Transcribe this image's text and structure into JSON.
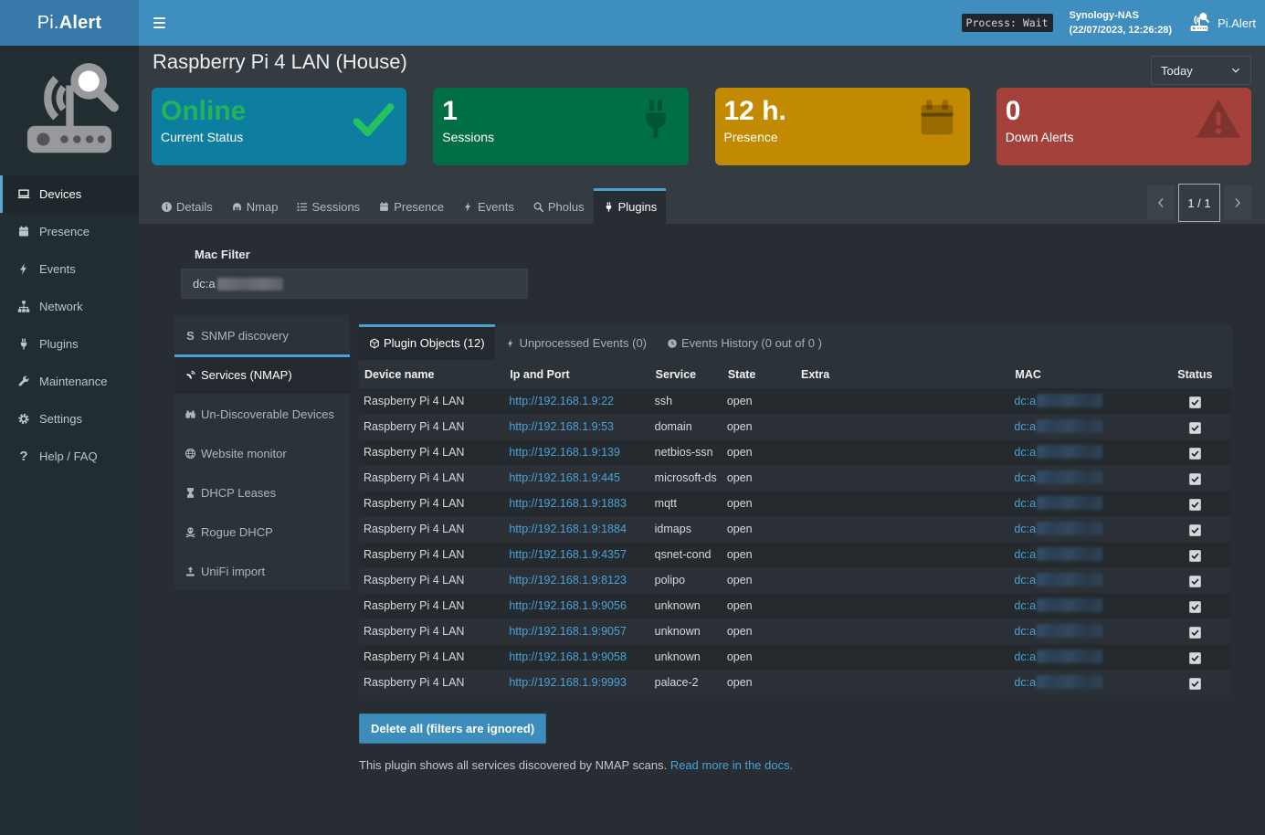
{
  "navbar": {
    "brand_prefix": "Pi.",
    "brand_suffix": "Alert",
    "process_badge": "Process: Wait",
    "host_name": "Synology-NAS",
    "host_time": "(22/07/2023, 12:26:28)",
    "app_name": "Pi.Alert"
  },
  "sidebar": {
    "items": [
      {
        "label": "Devices",
        "icon": "laptop",
        "active": true
      },
      {
        "label": "Presence",
        "icon": "calendar",
        "active": false
      },
      {
        "label": "Events",
        "icon": "bolt",
        "active": false
      },
      {
        "label": "Network",
        "icon": "sitemap",
        "active": false
      },
      {
        "label": "Plugins",
        "icon": "plug",
        "active": false
      },
      {
        "label": "Maintenance",
        "icon": "wrench",
        "active": false
      },
      {
        "label": "Settings",
        "icon": "gear",
        "active": false
      },
      {
        "label": "Help / FAQ",
        "icon": "question",
        "active": false
      }
    ]
  },
  "header": {
    "title": "Raspberry Pi 4 LAN (House)",
    "period_selector": "Today"
  },
  "cards": [
    {
      "value": "Online",
      "label": "Current Status",
      "icon": "check",
      "bg": "#0d7ea0",
      "value_color": "#23b35a"
    },
    {
      "value": "1",
      "label": "Sessions",
      "icon": "plug",
      "bg": "#016e43",
      "value_color": ""
    },
    {
      "value": "12 h.",
      "label": "Presence",
      "icon": "calendar",
      "bg": "#c28a00",
      "value_color": ""
    },
    {
      "value": "0",
      "label": "Down Alerts",
      "icon": "warning",
      "bg": "#a4413b",
      "value_color": ""
    }
  ],
  "device_tabs": [
    {
      "label": "Details",
      "icon": "info",
      "active": false
    },
    {
      "label": "Nmap",
      "icon": "nmap",
      "active": false
    },
    {
      "label": "Sessions",
      "icon": "listol",
      "active": false
    },
    {
      "label": "Presence",
      "icon": "calendar",
      "active": false
    },
    {
      "label": "Events",
      "icon": "bolt",
      "active": false
    },
    {
      "label": "Pholus",
      "icon": "search",
      "active": false
    },
    {
      "label": "Plugins",
      "icon": "plug",
      "active": true
    }
  ],
  "pagination": {
    "label": "1 / 1"
  },
  "plugin_panel": {
    "mac_filter_label": "Mac Filter",
    "mac_filter_value": "dc:a",
    "nav": [
      {
        "label": "SNMP discovery",
        "icon": "snmp",
        "active": false
      },
      {
        "label": "Services (NMAP)",
        "icon": "satellite",
        "active": true
      },
      {
        "label": "Un-Discoverable Devices",
        "icon": "binoculars",
        "active": false
      },
      {
        "label": "Website monitor",
        "icon": "globe",
        "active": false
      },
      {
        "label": "DHCP Leases",
        "icon": "hourglass",
        "active": false
      },
      {
        "label": "Rogue DHCP",
        "icon": "skull",
        "active": false
      },
      {
        "label": "UniFi import",
        "icon": "upload",
        "active": false
      }
    ],
    "inner_tabs": [
      {
        "label": "Plugin Objects (12)",
        "icon": "cube",
        "active": true
      },
      {
        "label": "Unprocessed Events (0)",
        "icon": "bolt",
        "active": false
      },
      {
        "label": "Events History (0 out of 0 )",
        "icon": "clock",
        "active": false
      }
    ],
    "table": {
      "columns": [
        "Device name",
        "Ip and Port",
        "Service",
        "State",
        "Extra",
        "MAC",
        "Status"
      ],
      "mac_prefix": "dc:a",
      "rows": [
        {
          "device": "Raspberry Pi 4 LAN",
          "url": "http://192.168.1.9:22",
          "service": "ssh",
          "state": "open",
          "extra": "",
          "status_checked": true
        },
        {
          "device": "Raspberry Pi 4 LAN",
          "url": "http://192.168.1.9:53",
          "service": "domain",
          "state": "open",
          "extra": "",
          "status_checked": true
        },
        {
          "device": "Raspberry Pi 4 LAN",
          "url": "http://192.168.1.9:139",
          "service": "netbios-ssn",
          "state": "open",
          "extra": "",
          "status_checked": true
        },
        {
          "device": "Raspberry Pi 4 LAN",
          "url": "http://192.168.1.9:445",
          "service": "microsoft-ds",
          "state": "open",
          "extra": "",
          "status_checked": true
        },
        {
          "device": "Raspberry Pi 4 LAN",
          "url": "http://192.168.1.9:1883",
          "service": "mqtt",
          "state": "open",
          "extra": "",
          "status_checked": true
        },
        {
          "device": "Raspberry Pi 4 LAN",
          "url": "http://192.168.1.9:1884",
          "service": "idmaps",
          "state": "open",
          "extra": "",
          "status_checked": true
        },
        {
          "device": "Raspberry Pi 4 LAN",
          "url": "http://192.168.1.9:4357",
          "service": "qsnet-cond",
          "state": "open",
          "extra": "",
          "status_checked": true
        },
        {
          "device": "Raspberry Pi 4 LAN",
          "url": "http://192.168.1.9:8123",
          "service": "polipo",
          "state": "open",
          "extra": "",
          "status_checked": true
        },
        {
          "device": "Raspberry Pi 4 LAN",
          "url": "http://192.168.1.9:9056",
          "service": "unknown",
          "state": "open",
          "extra": "",
          "status_checked": true
        },
        {
          "device": "Raspberry Pi 4 LAN",
          "url": "http://192.168.1.9:9057",
          "service": "unknown",
          "state": "open",
          "extra": "",
          "status_checked": true
        },
        {
          "device": "Raspberry Pi 4 LAN",
          "url": "http://192.168.1.9:9058",
          "service": "unknown",
          "state": "open",
          "extra": "",
          "status_checked": true
        },
        {
          "device": "Raspberry Pi 4 LAN",
          "url": "http://192.168.1.9:9993",
          "service": "palace-2",
          "state": "open",
          "extra": "",
          "status_checked": true
        }
      ]
    },
    "delete_button": "Delete all (filters are ignored)",
    "footer_text": "This plugin shows all services discovered by NMAP scans.",
    "footer_link": "Read more in the docs."
  }
}
